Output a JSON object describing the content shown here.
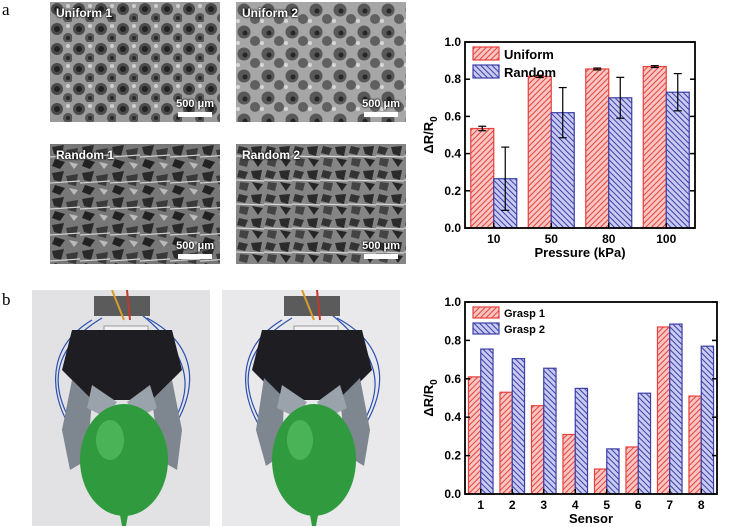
{
  "panel_a": {
    "letter": "a",
    "images": [
      {
        "label": "Uniform 1",
        "scale": "500 μm"
      },
      {
        "label": "Uniform 2",
        "scale": "500 μm"
      },
      {
        "label": "Random 1",
        "scale": "500 μm"
      },
      {
        "label": "Random 2",
        "scale": "500 μm"
      }
    ]
  },
  "panel_b": {
    "letter": "b"
  },
  "chart_data": [
    {
      "type": "bar",
      "title": "",
      "xlabel": "Pressure (kPa)",
      "ylabel": "ΔR/R",
      "ylabel_sub": "0",
      "categories": [
        "10",
        "50",
        "80",
        "100"
      ],
      "ylim": [
        0.0,
        1.0
      ],
      "yticks": [
        "0.0",
        "0.2",
        "0.4",
        "0.6",
        "0.8",
        "1.0"
      ],
      "legend_position": "top-left",
      "series": [
        {
          "name": "Uniform",
          "color": "#e8413c",
          "values": [
            0.535,
            0.815,
            0.855,
            0.868
          ],
          "errors": [
            0.012,
            0.006,
            0.005,
            0.005
          ]
        },
        {
          "name": "Random",
          "color": "#3b3fa8",
          "values": [
            0.265,
            0.62,
            0.7,
            0.73
          ],
          "errors": [
            0.17,
            0.135,
            0.11,
            0.1
          ]
        }
      ]
    },
    {
      "type": "bar",
      "title": "",
      "xlabel": "Sensor",
      "ylabel": "ΔR/R",
      "ylabel_sub": "0",
      "categories": [
        "1",
        "2",
        "3",
        "4",
        "5",
        "6",
        "7",
        "8"
      ],
      "ylim": [
        0.0,
        1.0
      ],
      "yticks": [
        "0.0",
        "0.2",
        "0.4",
        "0.6",
        "0.8",
        "1.0"
      ],
      "legend_position": "top-left",
      "series": [
        {
          "name": "Grasp 1",
          "color": "#e8413c",
          "values": [
            0.61,
            0.53,
            0.46,
            0.31,
            0.13,
            0.245,
            0.87,
            0.51
          ]
        },
        {
          "name": "Grasp 2",
          "color": "#3b3fa8",
          "values": [
            0.755,
            0.705,
            0.655,
            0.55,
            0.235,
            0.525,
            0.885,
            0.77
          ]
        }
      ]
    }
  ]
}
